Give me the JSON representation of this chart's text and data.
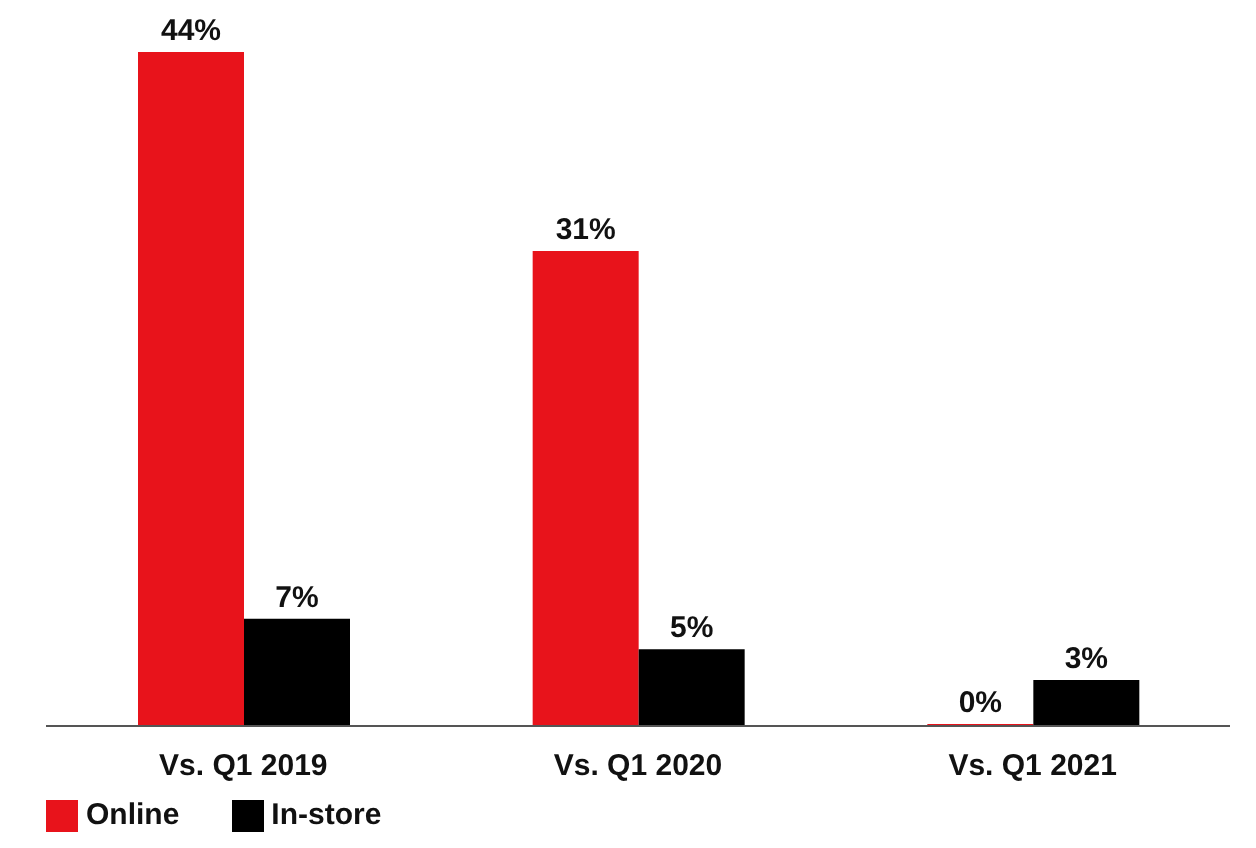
{
  "chart_data": {
    "type": "bar",
    "categories": [
      "Vs. Q1 2019",
      "Vs. Q1 2020",
      "Vs. Q1 2021"
    ],
    "series": [
      {
        "name": "Online",
        "color": "#e8131b",
        "values": [
          44,
          31,
          0
        ],
        "value_labels": [
          "44%",
          "31%",
          "0%"
        ]
      },
      {
        "name": "In-store",
        "color": "#000000",
        "values": [
          7,
          5,
          3
        ],
        "value_labels": [
          "7%",
          "5%",
          "3%"
        ]
      }
    ],
    "legend": "bottom left",
    "grid": false
  }
}
